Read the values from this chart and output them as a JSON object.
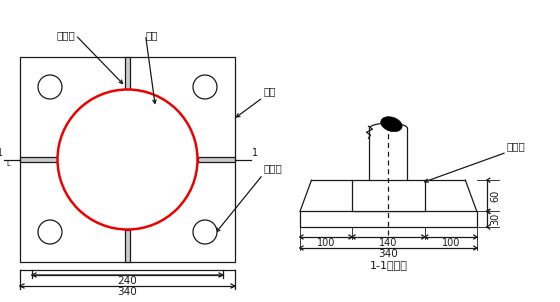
{
  "bg_color": "#ffffff",
  "line_color": "#1a1a1a",
  "red_circle_color": "#ee0000",
  "fig_width": 5.6,
  "fig_height": 3.02,
  "labels": {
    "jia_jin_jin": "加劲肋",
    "gang_guan": "钢管",
    "duan_ban": "端板",
    "luo_shuan_kong": "螺栓孔",
    "section_label": "1-1剖面图",
    "dim_240": "240",
    "dim_340_left": "340",
    "dim_100_left": "100",
    "dim_140": "140",
    "dim_100_right": "100",
    "dim_340_right": "340",
    "dim_60": "60",
    "dim_30": "30",
    "jia_jin_jin2": "加劲肋"
  }
}
